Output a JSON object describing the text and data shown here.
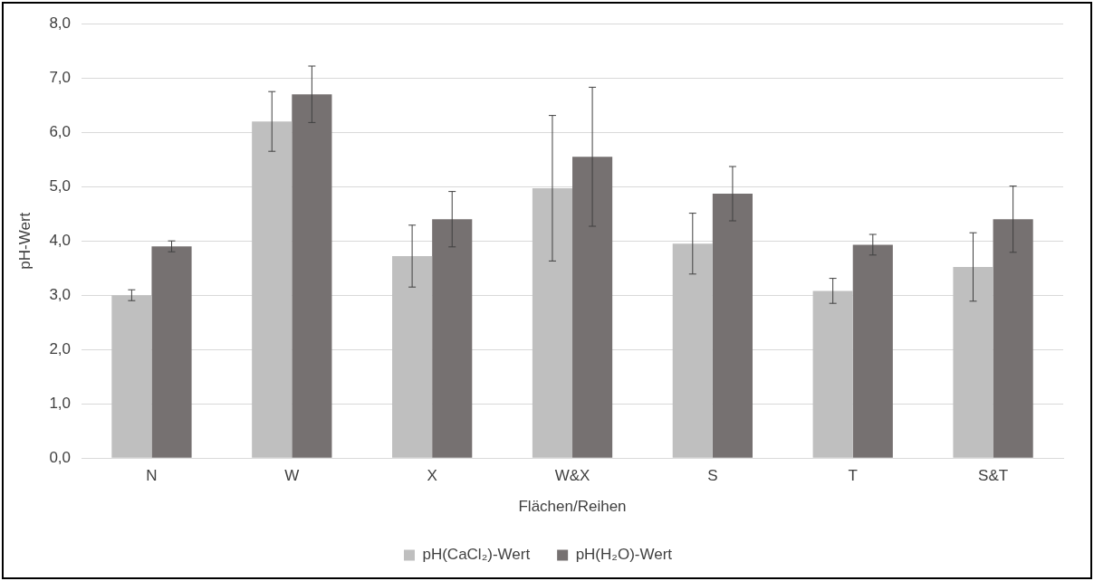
{
  "chart_data": {
    "type": "bar",
    "xlabel": "Flächen/Reihen",
    "ylabel": "pH-Wert",
    "categories": [
      "N",
      "W",
      "X",
      "W&X",
      "S",
      "T",
      "S&T"
    ],
    "series": [
      {
        "name": "pH(CaCl₂)-Wert",
        "color": "#bfbfbf",
        "values": [
          3.0,
          6.2,
          3.72,
          4.97,
          3.95,
          3.08,
          3.52
        ],
        "errors": [
          0.1,
          0.55,
          0.57,
          1.34,
          0.56,
          0.23,
          0.63
        ]
      },
      {
        "name": "pH(H₂O)-Wert",
        "color": "#767171",
        "values": [
          3.9,
          6.7,
          4.4,
          5.55,
          4.87,
          3.93,
          4.4
        ],
        "errors": [
          0.1,
          0.52,
          0.51,
          1.28,
          0.5,
          0.19,
          0.61
        ]
      }
    ],
    "ylim": [
      0,
      8
    ],
    "yticks": [
      {
        "value": 0,
        "label": "0,0"
      },
      {
        "value": 1,
        "label": "1,0"
      },
      {
        "value": 2,
        "label": "2,0"
      },
      {
        "value": 3,
        "label": "3,0"
      },
      {
        "value": 4,
        "label": "4,0"
      },
      {
        "value": 5,
        "label": "5,0"
      },
      {
        "value": 6,
        "label": "6,0"
      },
      {
        "value": 7,
        "label": "7,0"
      },
      {
        "value": 8,
        "label": "8,0"
      }
    ],
    "grid": "y",
    "legend": "bottom"
  }
}
